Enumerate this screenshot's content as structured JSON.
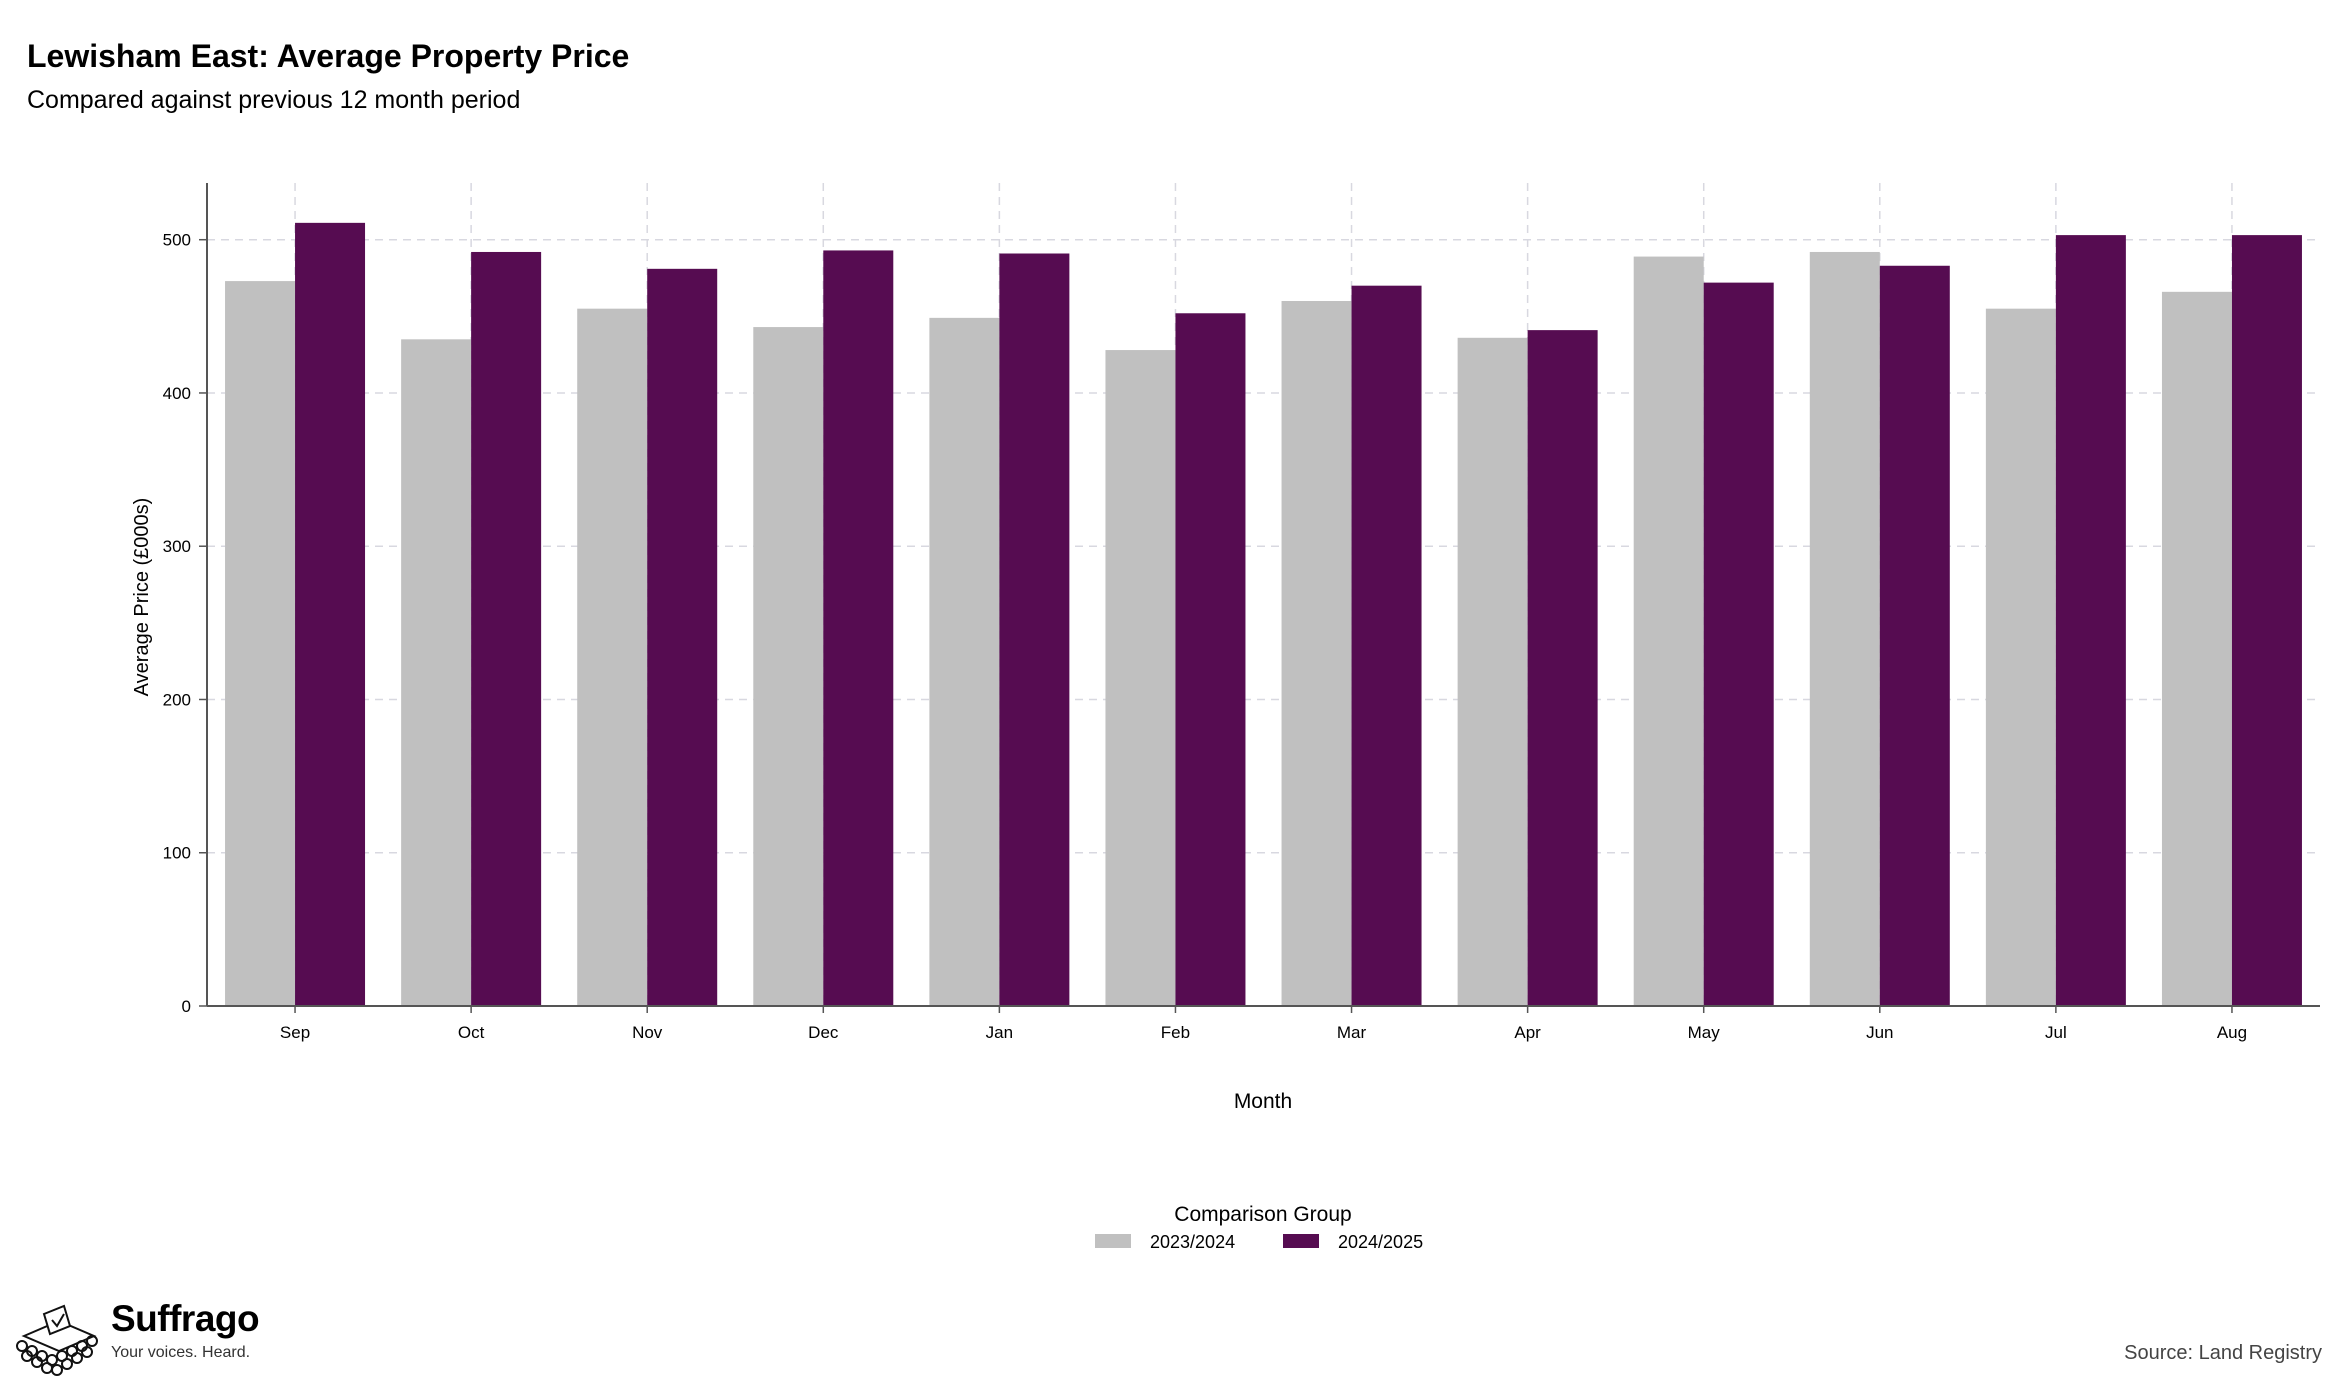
{
  "title": "Lewisham East: Average Property Price",
  "subtitle": "Compared against previous 12 month period",
  "brand": {
    "name": "Suffrago",
    "tagline": "Your voices. Heard.",
    "logo_icon": "ballot-box-icon"
  },
  "source": "Source: Land Registry",
  "colors": {
    "series_2023": "#c0c0c0",
    "series_2024": "#560c51",
    "grid": "#d8d8e0",
    "axis": "#555555"
  },
  "chart_data": {
    "type": "bar",
    "categories": [
      "Sep",
      "Oct",
      "Nov",
      "Dec",
      "Jan",
      "Feb",
      "Mar",
      "Apr",
      "May",
      "Jun",
      "Jul",
      "Aug"
    ],
    "series": [
      {
        "name": "2023/2024",
        "values": [
          473,
          435,
          455,
          443,
          449,
          428,
          460,
          436,
          489,
          492,
          455,
          466
        ]
      },
      {
        "name": "2024/2025",
        "values": [
          511,
          492,
          481,
          493,
          491,
          452,
          470,
          441,
          472,
          483,
          503,
          503
        ]
      }
    ],
    "xlabel": "Month",
    "ylabel": "Average Price (£000s)",
    "ylim": [
      0,
      537
    ],
    "yticks": [
      0,
      100,
      200,
      300,
      400,
      500
    ],
    "grid": true,
    "legend": {
      "title": "Comparison Group",
      "position": "bottom"
    }
  }
}
